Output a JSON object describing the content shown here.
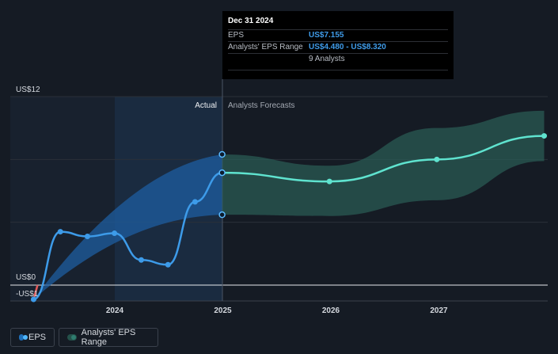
{
  "chart_data": {
    "type": "line",
    "x_ticks": [
      "2024",
      "2025",
      "2026",
      "2027"
    ],
    "y_labels": {
      "top": "US$12",
      "zero": "US$0",
      "bottom": "-US$1"
    },
    "ylim": [
      -1,
      12
    ],
    "section_labels": {
      "actual": "Actual",
      "forecast": "Analysts Forecasts"
    },
    "series": [
      {
        "name": "EPS",
        "color": "#3d9be9",
        "x": [
          "2023-03-31",
          "2023-06-30",
          "2023-09-30",
          "2023-12-31",
          "2024-03-31",
          "2024-06-30",
          "2024-09-30",
          "2024-12-31"
        ],
        "values": [
          -0.9,
          3.4,
          3.1,
          3.3,
          1.6,
          1.3,
          5.3,
          7.155
        ]
      },
      {
        "name": "EPS Forecast",
        "color": "#5fe3cf",
        "x": [
          "2024-12-31",
          "2025-12-31",
          "2026-12-31",
          "2027-12-31"
        ],
        "values": [
          7.155,
          6.6,
          8.0,
          9.5
        ]
      },
      {
        "name": "Analysts' EPS Range",
        "color": "#2b5e57",
        "x": [
          "2024-12-31",
          "2025-12-31",
          "2026-12-31",
          "2027-12-31"
        ],
        "low": [
          4.48,
          4.4,
          5.4,
          7.9
        ],
        "high": [
          8.32,
          7.6,
          10.0,
          11.1
        ]
      }
    ],
    "grid": true
  },
  "tooltip": {
    "date": "Dec 31 2024",
    "eps_label": "EPS",
    "eps_value": "US$7.155",
    "range_label": "Analysts' EPS Range",
    "range_value": "US$4.480 - US$8.320",
    "analysts": "9 Analysts"
  },
  "legend": {
    "eps": "EPS",
    "range": "Analysts' EPS Range"
  },
  "colors": {
    "background": "#151b24",
    "eps_line": "#3d9be9",
    "forecast_line": "#5fe3cf",
    "forecast_band": "#2b5e57",
    "negative_segment": "#e05a5a"
  }
}
